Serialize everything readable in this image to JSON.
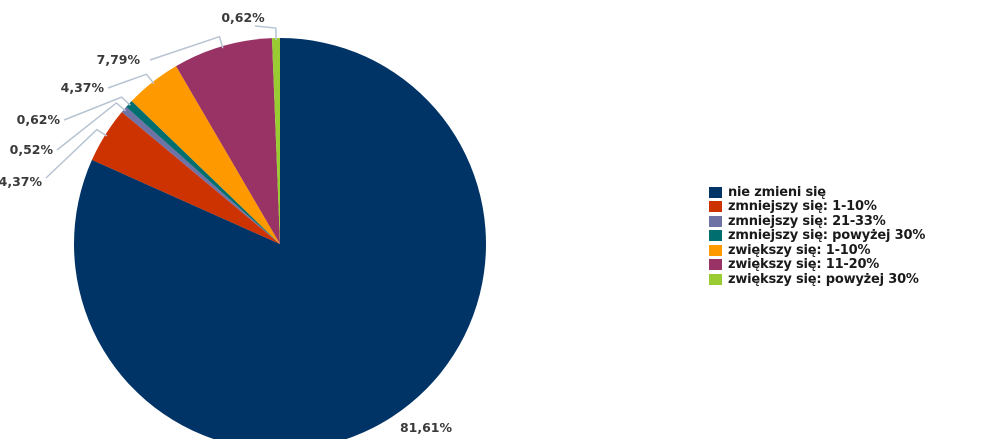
{
  "chart_data": {
    "type": "pie",
    "start_angle_deg": 0,
    "direction": "clockwise",
    "legend_position": "right",
    "slices": [
      {
        "label": "nie zmieni się",
        "value": 81.61,
        "display": "81,61%",
        "color": "#003366"
      },
      {
        "label": "zmniejszy się: 1-10%",
        "value": 4.37,
        "display": "4,37%",
        "color": "#cc3300"
      },
      {
        "label": "zmniejszy się: 21-33%",
        "value": 0.52,
        "display": "0,52%",
        "color": "#6f72a4"
      },
      {
        "label": "zmniejszy się: powyżej 30%",
        "value": 0.62,
        "display": "0,62%",
        "color": "#006e6e"
      },
      {
        "label": "zwiększy się: 1-10%",
        "value": 4.37,
        "display": "4,37%",
        "color": "#ff9900"
      },
      {
        "label": "zwiększy się: 11-20%",
        "value": 7.79,
        "display": "7,79%",
        "color": "#993366"
      },
      {
        "label": "zwiększy się: powyżej 30%",
        "value": 0.62,
        "display": "0,62%",
        "color": "#99cc33"
      }
    ]
  }
}
